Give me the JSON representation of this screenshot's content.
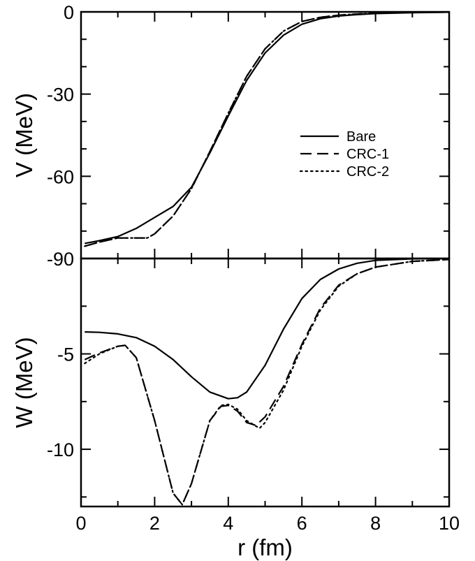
{
  "chart_data": [
    {
      "type": "line",
      "panel": "top",
      "ylabel": "V (MeV)",
      "xlabel": "",
      "xlim": [
        0,
        10
      ],
      "ylim": [
        -90,
        0
      ],
      "yticks": [
        0,
        -30,
        -60,
        -90
      ],
      "ytick_labels": [
        "0",
        "-30",
        "-60",
        "-90"
      ],
      "grid": false,
      "legend_position": "right-middle",
      "series": [
        {
          "name": "Bare",
          "style": "solid",
          "x": [
            0.1,
            0.5,
            1.0,
            1.5,
            2.0,
            2.5,
            3.0,
            3.5,
            4.0,
            4.5,
            5.0,
            5.5,
            6.0,
            6.5,
            7.0,
            7.5,
            8.0,
            9.0,
            10.0
          ],
          "y": [
            -84.5,
            -83.5,
            -82.0,
            -79.0,
            -75.0,
            -71.0,
            -64.0,
            -51.5,
            -38.0,
            -25.0,
            -15.0,
            -8.5,
            -4.5,
            -2.5,
            -1.5,
            -1.0,
            -0.6,
            -0.3,
            -0.1
          ]
        },
        {
          "name": "CRC-1",
          "style": "dashed",
          "x": [
            0.1,
            0.5,
            1.0,
            1.5,
            1.8,
            2.0,
            2.5,
            3.0,
            3.5,
            4.0,
            4.5,
            5.0,
            5.5,
            6.0,
            6.5,
            7.0,
            7.5,
            8.0,
            9.0,
            10.0
          ],
          "y": [
            -85.5,
            -84.0,
            -82.5,
            -82.5,
            -82.5,
            -81.0,
            -74.5,
            -64.5,
            -51.0,
            -37.0,
            -23.5,
            -13.5,
            -7.0,
            -3.5,
            -2.0,
            -1.2,
            -0.8,
            -0.5,
            -0.2,
            -0.1
          ]
        },
        {
          "name": "CRC-2",
          "style": "dotted",
          "x": [
            0.1,
            0.5,
            1.0,
            1.5,
            1.8,
            2.0,
            2.5,
            3.0,
            3.5,
            4.0,
            4.5,
            5.0,
            5.5,
            6.0,
            6.5,
            7.0,
            7.5,
            8.0,
            9.0,
            10.0
          ],
          "y": [
            -85.5,
            -84.0,
            -82.5,
            -82.5,
            -82.5,
            -81.0,
            -74.5,
            -64.5,
            -51.0,
            -37.0,
            -23.5,
            -13.5,
            -7.0,
            -3.5,
            -2.0,
            -1.2,
            -0.8,
            -0.5,
            -0.2,
            -0.1
          ]
        }
      ]
    },
    {
      "type": "line",
      "panel": "bottom",
      "ylabel": "W (MeV)",
      "xlabel": "r (fm)",
      "xlim": [
        0,
        10
      ],
      "ylim": [
        -13,
        0
      ],
      "xticks": [
        0,
        2,
        4,
        6,
        8,
        10
      ],
      "xtick_labels": [
        "0",
        "2",
        "4",
        "6",
        "8",
        "10"
      ],
      "yticks": [
        -5,
        -10
      ],
      "ytick_labels": [
        "-5",
        "-10"
      ],
      "grid": false,
      "series": [
        {
          "name": "Bare",
          "style": "solid",
          "x": [
            0.1,
            0.5,
            1.0,
            1.5,
            2.0,
            2.5,
            3.0,
            3.5,
            4.0,
            4.25,
            4.5,
            5.0,
            5.5,
            6.0,
            6.5,
            7.0,
            7.5,
            8.0,
            9.0,
            10.0
          ],
          "y": [
            -3.85,
            -3.87,
            -3.95,
            -4.15,
            -4.6,
            -5.3,
            -6.2,
            -7.0,
            -7.35,
            -7.3,
            -7.0,
            -5.6,
            -3.7,
            -2.1,
            -1.1,
            -0.55,
            -0.25,
            -0.1,
            -0.02,
            0.0
          ]
        },
        {
          "name": "CRC-1",
          "style": "dashed",
          "x": [
            0.1,
            0.5,
            1.0,
            1.2,
            1.5,
            2.0,
            2.5,
            2.75,
            3.0,
            3.5,
            3.8,
            4.0,
            4.25,
            4.5,
            4.75,
            5.0,
            5.5,
            6.0,
            6.5,
            7.0,
            7.5,
            8.0,
            9.0,
            10.0
          ],
          "y": [
            -5.3,
            -4.95,
            -4.6,
            -4.55,
            -5.2,
            -8.5,
            -12.3,
            -12.9,
            -11.8,
            -8.5,
            -7.75,
            -7.7,
            -8.0,
            -8.6,
            -8.75,
            -8.3,
            -6.7,
            -4.5,
            -2.6,
            -1.4,
            -0.8,
            -0.45,
            -0.15,
            -0.05
          ]
        },
        {
          "name": "CRC-2",
          "style": "dotted",
          "x": [
            0.1,
            0.5,
            1.0,
            1.2,
            1.5,
            2.0,
            2.5,
            2.75,
            3.0,
            3.5,
            3.8,
            4.0,
            4.25,
            4.5,
            4.85,
            5.0,
            5.5,
            6.0,
            6.5,
            7.0,
            7.5,
            8.0,
            9.0,
            10.0
          ],
          "y": [
            -5.5,
            -5.0,
            -4.6,
            -4.55,
            -5.2,
            -8.5,
            -12.3,
            -12.9,
            -11.8,
            -8.5,
            -7.7,
            -7.65,
            -7.9,
            -8.5,
            -8.9,
            -8.6,
            -6.9,
            -4.6,
            -2.7,
            -1.45,
            -0.8,
            -0.45,
            -0.15,
            -0.05
          ]
        }
      ]
    }
  ]
}
